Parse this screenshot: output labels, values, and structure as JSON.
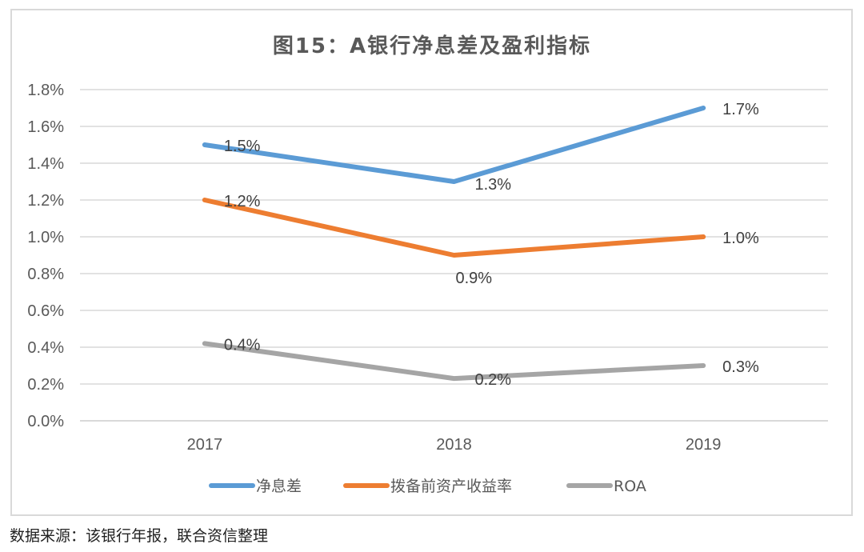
{
  "chart_data": {
    "type": "line",
    "title": "图15：A银行净息差及盈利指标",
    "xlabel": "",
    "ylabel": "",
    "categories": [
      "2017",
      "2018",
      "2019"
    ],
    "ylim": [
      0,
      1.8
    ],
    "yticks": [
      0.0,
      0.2,
      0.4,
      0.6,
      0.8,
      1.0,
      1.2,
      1.4,
      1.6,
      1.8
    ],
    "ytick_labels": [
      "0.0%",
      "0.2%",
      "0.4%",
      "0.6%",
      "0.8%",
      "1.0%",
      "1.2%",
      "1.4%",
      "1.6%",
      "1.8%"
    ],
    "grid": true,
    "legend_position": "bottom",
    "series": [
      {
        "name": "净息差",
        "color": "#5b9bd5",
        "values": [
          1.5,
          1.3,
          1.7
        ],
        "labels": [
          "1.5%",
          "1.3%",
          "1.7%"
        ]
      },
      {
        "name": "拨备前资产收益率",
        "color": "#ed7d31",
        "values": [
          1.2,
          0.9,
          1.0
        ],
        "labels": [
          "1.2%",
          "0.9%",
          "1.0%"
        ]
      },
      {
        "name": "ROA",
        "color": "#a5a5a5",
        "values": [
          0.42,
          0.23,
          0.3
        ],
        "labels": [
          "0.4%",
          "0.2%",
          "0.3%"
        ]
      }
    ]
  },
  "footer": {
    "source": "数据来源：该银行年报，联合资信整理"
  }
}
